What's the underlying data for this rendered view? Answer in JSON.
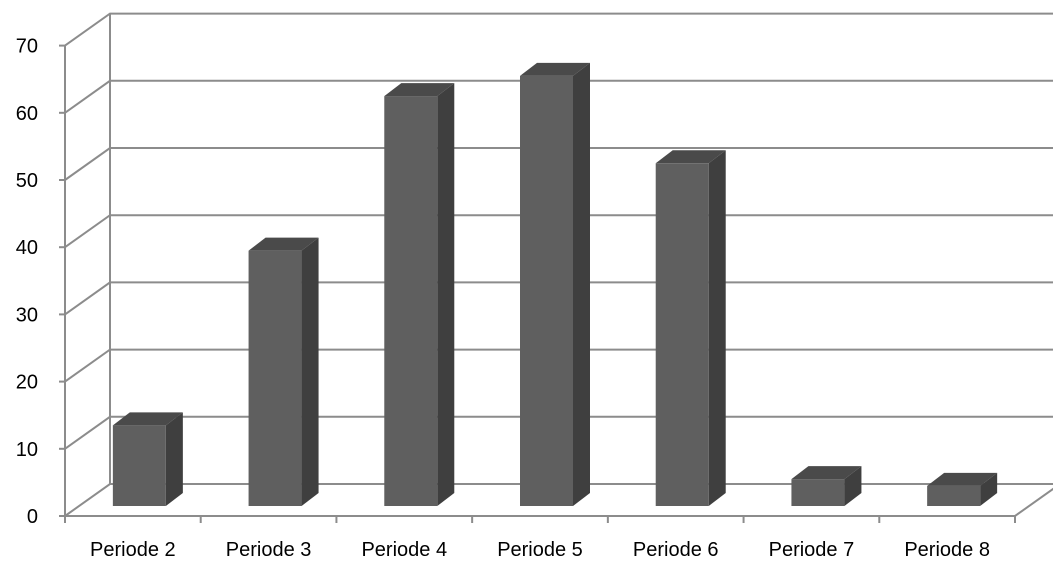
{
  "chart_data": {
    "type": "bar",
    "style": "3d-column",
    "title": "",
    "xlabel": "",
    "ylabel": "",
    "categories": [
      "Periode 2",
      "Periode 3",
      "Periode 4",
      "Periode 5",
      "Periode 6",
      "Periode 7",
      "Periode 8"
    ],
    "values": [
      12,
      38,
      61,
      64,
      51,
      4,
      3
    ],
    "ylim": [
      0,
      70
    ],
    "yticks": [
      "0",
      "10",
      "20",
      "30",
      "40",
      "50",
      "60",
      "70"
    ],
    "grid": true,
    "legend": "none",
    "colors": {
      "bar_front": "#5f5f5f",
      "bar_side": "#3f3f3f",
      "bar_top": "#4a4a4a",
      "grid": "#8c8c8c",
      "axis": "#8c8c8c"
    }
  }
}
